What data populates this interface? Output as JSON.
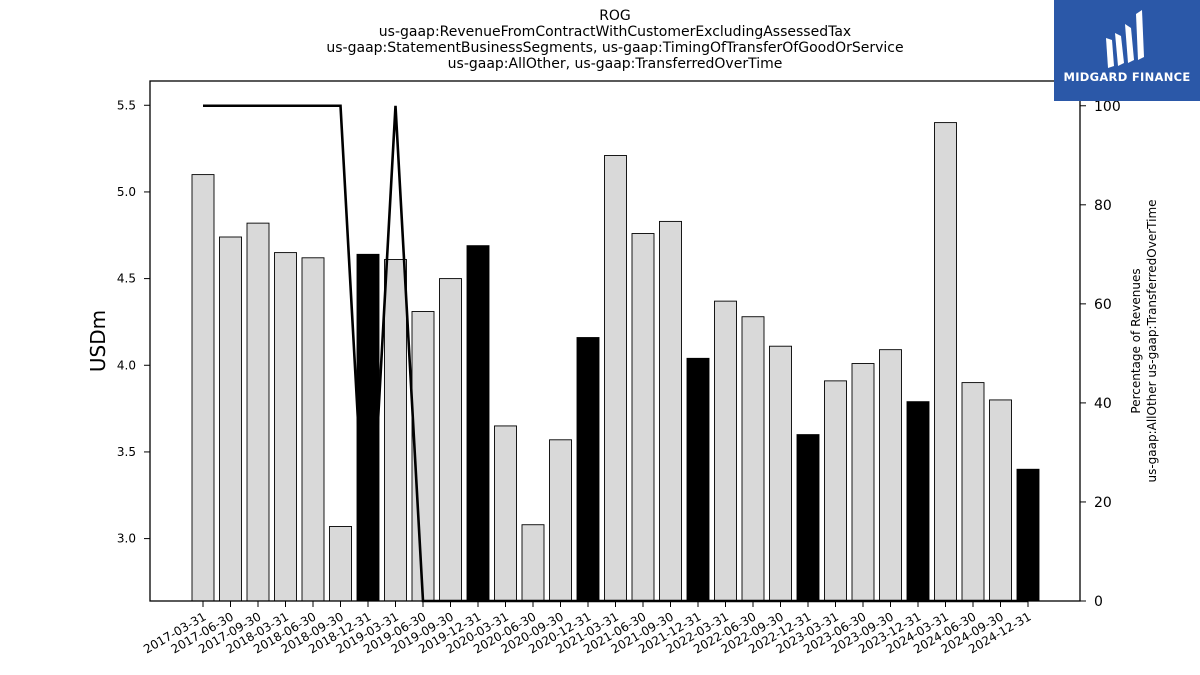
{
  "chart_data": {
    "type": "bar",
    "title_lines": [
      "ROG",
      "us-gaap:RevenueFromContractWithCustomerExcludingAssessedTax",
      "us-gaap:StatementBusinessSegments, us-gaap:TimingOfTransferOfGoodOrService",
      "us-gaap:AllOther, us-gaap:TransferredOverTime"
    ],
    "ylabel": "USDm",
    "y2label_lines": [
      "Percentage of Revenues",
      "us-gaap:AllOther us-gaap:TransferredOverTime"
    ],
    "ylim": [
      2.64,
      5.64
    ],
    "y_ticks": [
      3.0,
      3.5,
      4.0,
      4.5,
      5.0,
      5.5
    ],
    "y2lim": [
      0,
      105
    ],
    "y2_ticks": [
      0,
      20,
      40,
      60,
      80,
      100
    ],
    "categories": [
      "2017-03-31",
      "2017-06-30",
      "2017-09-30",
      "2018-03-31",
      "2018-06-30",
      "2018-09-30",
      "2018-12-31",
      "2019-03-31",
      "2019-06-30",
      "2019-09-30",
      "2019-12-31",
      "2020-03-31",
      "2020-06-30",
      "2020-09-30",
      "2020-12-31",
      "2021-03-31",
      "2021-06-30",
      "2021-09-30",
      "2021-12-31",
      "2022-03-31",
      "2022-06-30",
      "2022-09-30",
      "2022-12-31",
      "2023-03-31",
      "2023-06-30",
      "2023-09-30",
      "2023-12-31",
      "2024-03-31",
      "2024-06-30",
      "2024-09-30",
      "2024-12-31"
    ],
    "series": [
      {
        "type": "bar",
        "axis": "left",
        "values": [
          5.1,
          4.74,
          4.82,
          4.65,
          4.62,
          3.07,
          4.64,
          4.61,
          4.31,
          4.5,
          4.69,
          3.65,
          3.08,
          3.57,
          4.16,
          5.21,
          4.76,
          4.83,
          4.04,
          4.37,
          4.28,
          4.11,
          3.6,
          3.91,
          4.01,
          4.09,
          3.79,
          5.4,
          3.9,
          3.8,
          3.4
        ],
        "highlight": [
          false,
          false,
          false,
          false,
          false,
          false,
          true,
          false,
          false,
          false,
          true,
          false,
          false,
          false,
          true,
          false,
          false,
          false,
          true,
          false,
          false,
          false,
          true,
          false,
          false,
          false,
          true,
          false,
          false,
          false,
          true
        ]
      },
      {
        "type": "line",
        "axis": "right",
        "values": [
          100,
          100,
          100,
          100,
          100,
          100,
          0,
          100,
          0,
          0,
          0,
          0,
          0,
          0,
          0,
          0,
          0,
          0,
          0,
          0,
          0,
          0,
          0,
          0,
          0,
          0,
          0,
          0,
          0,
          0,
          0
        ]
      }
    ],
    "colors": {
      "bar": "#d9d9d9",
      "bar_highlight": "#000000",
      "bar_edge": "#000000",
      "line": "#000000"
    }
  },
  "logo": {
    "text": "MIDGARD FINANCE",
    "color": "#2b58a8"
  }
}
